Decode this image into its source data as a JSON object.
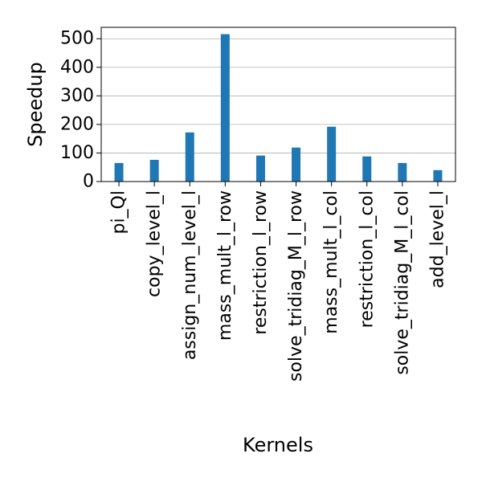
{
  "chart_data": {
    "type": "bar",
    "title": "",
    "xlabel": "Kernels",
    "ylabel": "Speedup",
    "categories": [
      "pi_Ql",
      "copy_level_l",
      "assign_num_level_l",
      "mass_mult_l_row",
      "restriction_l_row",
      "solve_tridiag_M_l_row",
      "mass_mult_l_col",
      "restriction_l_col",
      "solve_tridiag_M_l_col",
      "add_level_l"
    ],
    "values": [
      65,
      76,
      172,
      516,
      91,
      119,
      192,
      88,
      65,
      40
    ],
    "ylim": [
      0,
      540
    ],
    "yticks": [
      0,
      100,
      200,
      300,
      400,
      500
    ],
    "grid": "horizontal",
    "colors": {
      "bar": "#1f77b4",
      "grid": "#b0b0b0",
      "axis": "#000000"
    }
  }
}
